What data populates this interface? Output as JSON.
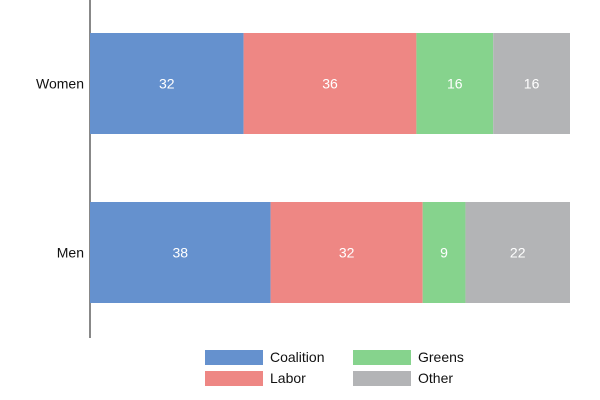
{
  "chart_data": {
    "type": "bar",
    "orientation": "horizontal",
    "stacked": true,
    "categories": [
      "Women",
      "Men"
    ],
    "series": [
      {
        "name": "Coalition",
        "color": "#6591ce",
        "values": [
          32,
          38
        ]
      },
      {
        "name": "Labor",
        "color": "#ee8784",
        "values": [
          36,
          32
        ]
      },
      {
        "name": "Greens",
        "color": "#86d38d",
        "values": [
          16,
          9
        ]
      },
      {
        "name": "Other",
        "color": "#b3b4b6",
        "values": [
          16,
          22
        ]
      }
    ],
    "title": "",
    "xlabel": "",
    "ylabel": "",
    "xlim": [
      0,
      100
    ],
    "grid": false,
    "legend": {
      "position": "bottom",
      "columns": 2
    }
  }
}
